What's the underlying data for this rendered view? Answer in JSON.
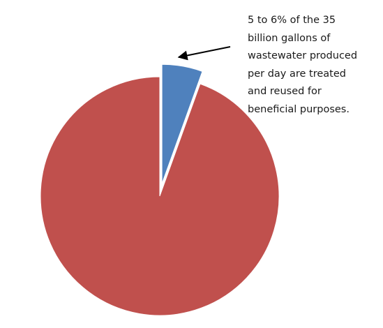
{
  "chart_data": {
    "type": "pie",
    "slices": [
      {
        "label": "",
        "value": 5.5,
        "color": "#4F81BD",
        "exploded": true
      },
      {
        "label": "",
        "value": 94.5,
        "color": "#C0504D",
        "exploded": false
      }
    ],
    "title": "",
    "legend": "none",
    "annotation": {
      "lines": [
        "5 to 6% of the 35",
        "billion gallons of",
        "wastewater produced",
        "per day are treated",
        "and reused for",
        "beneficial purposes."
      ],
      "points_to_slice": 0
    }
  }
}
